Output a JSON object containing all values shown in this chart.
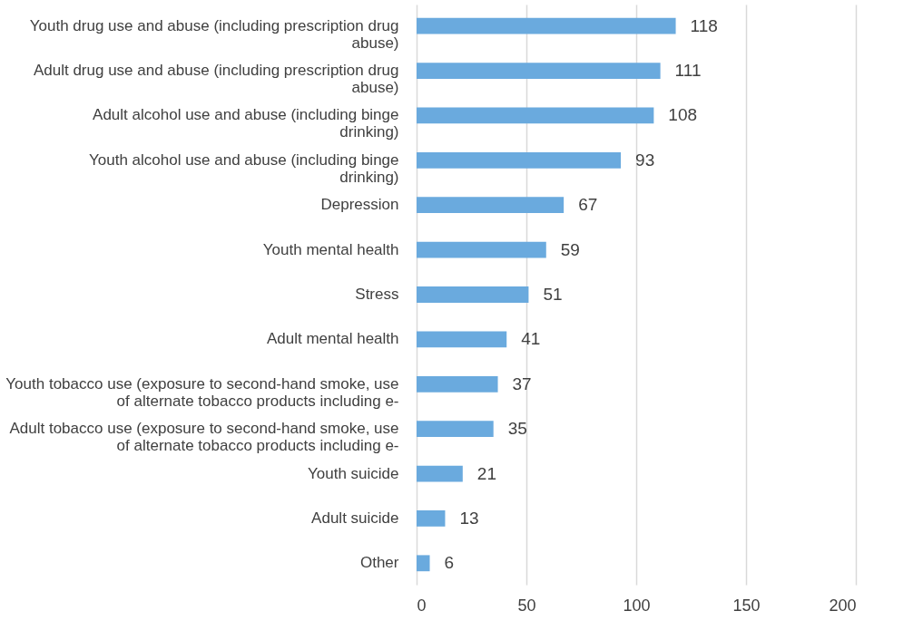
{
  "chart_data": {
    "type": "bar",
    "orientation": "horizontal",
    "categories": [
      "Youth drug use and abuse (including prescription drug abuse)",
      "Adult drug use and abuse (including prescription drug abuse)",
      "Adult alcohol use and abuse (including binge drinking)",
      "Youth alcohol use and abuse (including binge drinking)",
      "Depression",
      "Youth mental health",
      "Stress",
      "Adult mental health",
      "Youth tobacco use (exposure to second-hand smoke, use of alternate tobacco products including e-",
      "Adult tobacco use (exposure to second-hand smoke, use of alternate tobacco products including e-",
      "Youth suicide",
      "Adult suicide",
      "Other"
    ],
    "values": [
      118,
      111,
      108,
      93,
      67,
      59,
      51,
      41,
      37,
      35,
      21,
      13,
      6
    ],
    "color": "#6aaade",
    "xlim": [
      0,
      200
    ],
    "xticks": [
      0,
      50,
      100,
      150,
      200
    ],
    "grid": "x",
    "data_labels": true
  }
}
